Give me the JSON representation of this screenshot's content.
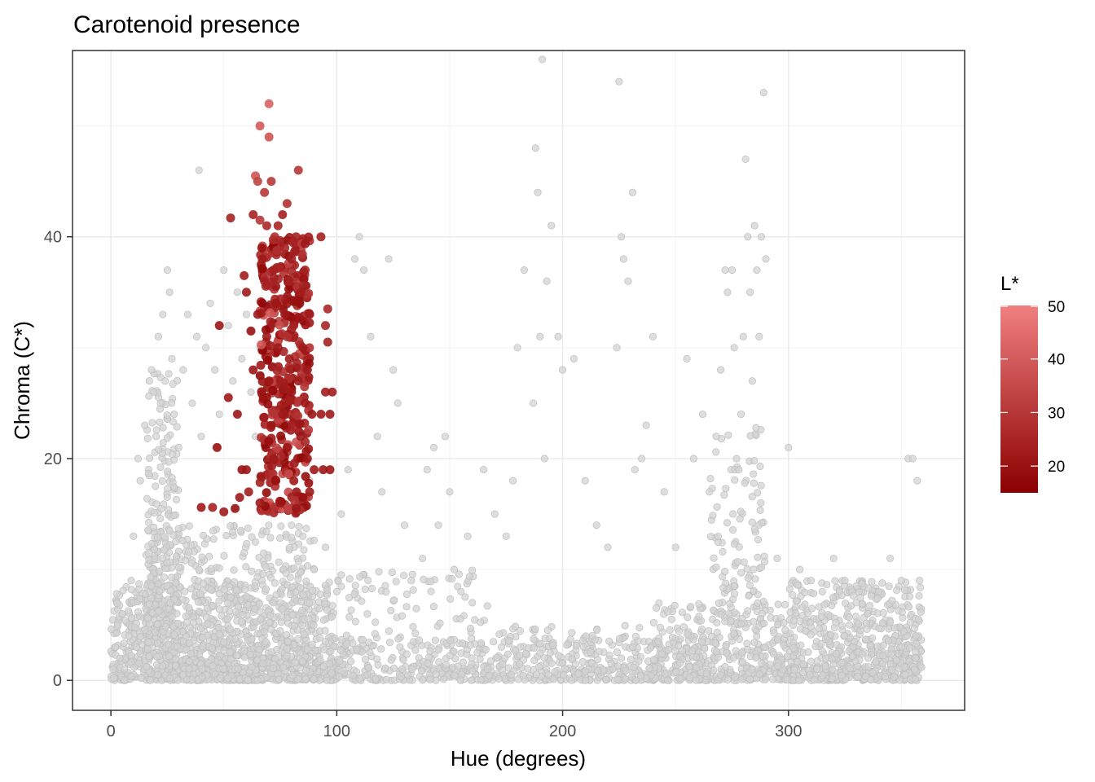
{
  "chart_data": {
    "type": "scatter",
    "title": "Carotenoid presence",
    "xlabel": "Hue (degrees)",
    "ylabel": "Chroma (C*)",
    "xlim": [
      -17,
      378
    ],
    "ylim": [
      -2.7,
      56.8
    ],
    "x_ticks": [
      0,
      100,
      200,
      300
    ],
    "y_ticks": [
      0,
      20,
      40
    ],
    "x_tick_labels": [
      "0",
      "100",
      "200",
      "300"
    ],
    "y_tick_labels": [
      "0",
      "20",
      "40"
    ],
    "grid": true,
    "legend": {
      "title": "L*",
      "placement": "right",
      "range": [
        15,
        50
      ],
      "ticks": [
        20,
        30,
        40,
        50
      ],
      "tick_labels": [
        "20",
        "30",
        "40",
        "50"
      ],
      "color_low": "#8b0000",
      "color_high": "#f08080"
    },
    "series": [
      {
        "role": "background",
        "color": "#d3d3d3",
        "description_points": "dense grey cloud of all samples",
        "points": [
          [
            1,
            1
          ],
          [
            2,
            3
          ],
          [
            3,
            5
          ],
          [
            4,
            2
          ],
          [
            5,
            6
          ],
          [
            6,
            1
          ],
          [
            8,
            4
          ],
          [
            9,
            9
          ],
          [
            10,
            13
          ],
          [
            12,
            20
          ],
          [
            13,
            18
          ],
          [
            15,
            23
          ],
          [
            18,
            28
          ],
          [
            19,
            26
          ],
          [
            20,
            22
          ],
          [
            21,
            31
          ],
          [
            22,
            25
          ],
          [
            23,
            33
          ],
          [
            24,
            27
          ],
          [
            25,
            37
          ],
          [
            26,
            35
          ],
          [
            27,
            29
          ],
          [
            28,
            24
          ],
          [
            30,
            21
          ],
          [
            32,
            28
          ],
          [
            34,
            33
          ],
          [
            36,
            25
          ],
          [
            38,
            31
          ],
          [
            39,
            46
          ],
          [
            40,
            22
          ],
          [
            42,
            30
          ],
          [
            44,
            34
          ],
          [
            46,
            28
          ],
          [
            48,
            24
          ],
          [
            50,
            37
          ],
          [
            52,
            32
          ],
          [
            54,
            27
          ],
          [
            56,
            35
          ],
          [
            58,
            29
          ],
          [
            60,
            33
          ],
          [
            62,
            26
          ],
          [
            64,
            22
          ],
          [
            66,
            30
          ],
          [
            68,
            25
          ],
          [
            70,
            19
          ],
          [
            75,
            16
          ],
          [
            80,
            14
          ],
          [
            85,
            13
          ],
          [
            88,
            18
          ],
          [
            90,
            10
          ],
          [
            95,
            12
          ],
          [
            100,
            8
          ],
          [
            102,
            15
          ],
          [
            105,
            19
          ],
          [
            108,
            38
          ],
          [
            110,
            40
          ],
          [
            112,
            37
          ],
          [
            115,
            31
          ],
          [
            118,
            22
          ],
          [
            120,
            17
          ],
          [
            123,
            38
          ],
          [
            125,
            28
          ],
          [
            127,
            25
          ],
          [
            130,
            14
          ],
          [
            133,
            9
          ],
          [
            138,
            11
          ],
          [
            140,
            19
          ],
          [
            143,
            21
          ],
          [
            145,
            14
          ],
          [
            148,
            22
          ],
          [
            150,
            17
          ],
          [
            152,
            10
          ],
          [
            155,
            8
          ],
          [
            158,
            13
          ],
          [
            160,
            7
          ],
          [
            165,
            19
          ],
          [
            170,
            15
          ],
          [
            175,
            13
          ],
          [
            178,
            18
          ],
          [
            180,
            30
          ],
          [
            183,
            37
          ],
          [
            187,
            25
          ],
          [
            188,
            48
          ],
          [
            189,
            44
          ],
          [
            190,
            31
          ],
          [
            191,
            56
          ],
          [
            192,
            20
          ],
          [
            193,
            36
          ],
          [
            195,
            41
          ],
          [
            198,
            31
          ],
          [
            200,
            28
          ],
          [
            205,
            29
          ],
          [
            210,
            18
          ],
          [
            215,
            14
          ],
          [
            220,
            12
          ],
          [
            224,
            30
          ],
          [
            225,
            54
          ],
          [
            226,
            40
          ],
          [
            227,
            38
          ],
          [
            229,
            36
          ],
          [
            231,
            44
          ],
          [
            232,
            19
          ],
          [
            235,
            20
          ],
          [
            237,
            23
          ],
          [
            240,
            31
          ],
          [
            245,
            17
          ],
          [
            250,
            12
          ],
          [
            255,
            29
          ],
          [
            258,
            20
          ],
          [
            262,
            24
          ],
          [
            265,
            17
          ],
          [
            268,
            22
          ],
          [
            270,
            28
          ],
          [
            272,
            37
          ],
          [
            273,
            35
          ],
          [
            275,
            37
          ],
          [
            276,
            30
          ],
          [
            277,
            20
          ],
          [
            278,
            19
          ],
          [
            279,
            24
          ],
          [
            280,
            31
          ],
          [
            281,
            47
          ],
          [
            282,
            40
          ],
          [
            283,
            35
          ],
          [
            284,
            27
          ],
          [
            285,
            41
          ],
          [
            286,
            37
          ],
          [
            287,
            31
          ],
          [
            288,
            40
          ],
          [
            289,
            53
          ],
          [
            290,
            38
          ],
          [
            295,
            11
          ],
          [
            300,
            21
          ],
          [
            305,
            10
          ],
          [
            310,
            9
          ],
          [
            315,
            8
          ],
          [
            320,
            11
          ],
          [
            325,
            9
          ],
          [
            330,
            7
          ],
          [
            335,
            6
          ],
          [
            340,
            8
          ],
          [
            345,
            11
          ],
          [
            350,
            9
          ],
          [
            353,
            20
          ],
          [
            355,
            20
          ],
          [
            357,
            18
          ],
          [
            358,
            9
          ]
        ]
      },
      {
        "role": "carotenoid",
        "color_by": "L*",
        "points": [
          [
            40,
            15.6,
            22
          ],
          [
            45,
            15.6,
            24
          ],
          [
            47,
            21,
            20
          ],
          [
            48,
            32,
            21
          ],
          [
            50,
            15.2,
            22
          ],
          [
            52,
            25.5,
            22
          ],
          [
            53,
            41.7,
            24
          ],
          [
            55,
            15.5,
            20
          ],
          [
            56,
            24,
            21
          ],
          [
            57,
            16.5,
            22
          ],
          [
            58,
            19,
            20
          ],
          [
            59,
            36.5,
            23
          ],
          [
            60,
            35,
            22
          ],
          [
            60,
            19,
            21
          ],
          [
            61,
            17,
            23
          ],
          [
            62,
            31.5,
            20
          ],
          [
            63,
            42,
            24
          ],
          [
            63,
            28,
            21
          ],
          [
            64,
            45.5,
            38
          ],
          [
            65,
            45,
            33
          ],
          [
            65,
            33,
            22
          ],
          [
            66,
            50,
            40
          ],
          [
            66,
            41.5,
            30
          ],
          [
            66,
            16,
            22
          ],
          [
            67,
            38,
            22
          ],
          [
            68,
            36,
            24
          ],
          [
            68,
            44,
            30
          ],
          [
            69,
            31,
            22
          ],
          [
            69,
            41,
            26
          ],
          [
            70,
            49,
            38
          ],
          [
            70,
            52,
            42
          ],
          [
            70,
            27,
            21
          ],
          [
            71,
            45,
            30
          ],
          [
            71,
            23,
            21
          ],
          [
            72,
            37,
            24
          ],
          [
            72,
            20,
            22
          ],
          [
            73,
            34,
            21
          ],
          [
            73,
            18,
            20
          ],
          [
            74,
            41,
            25
          ],
          [
            74,
            30,
            22
          ],
          [
            75,
            16,
            21
          ],
          [
            75,
            27,
            23
          ],
          [
            76,
            42,
            24
          ],
          [
            76,
            24,
            22
          ],
          [
            77,
            39,
            25
          ],
          [
            77,
            33,
            22
          ],
          [
            78,
            43,
            28
          ],
          [
            78,
            21,
            21
          ],
          [
            79,
            29,
            22
          ],
          [
            79,
            36,
            24
          ],
          [
            80,
            26,
            21
          ],
          [
            80,
            38,
            23
          ],
          [
            81,
            18,
            22
          ],
          [
            81,
            32,
            24
          ],
          [
            82,
            40,
            24
          ],
          [
            82,
            15.5,
            21
          ],
          [
            83,
            46,
            30
          ],
          [
            83,
            27,
            22
          ],
          [
            84,
            35,
            23
          ],
          [
            84,
            22,
            21
          ],
          [
            85,
            30,
            22
          ],
          [
            85,
            16.5,
            20
          ],
          [
            86,
            37,
            24
          ],
          [
            86,
            25,
            22
          ],
          [
            87,
            20,
            21
          ],
          [
            87,
            28,
            22
          ],
          [
            88,
            33,
            23
          ],
          [
            88,
            17,
            22
          ],
          [
            89,
            24,
            21
          ],
          [
            90,
            19,
            22
          ],
          [
            93,
            40,
            24
          ],
          [
            93,
            24,
            22
          ],
          [
            94,
            19,
            21
          ],
          [
            95,
            26,
            23
          ],
          [
            95,
            32,
            25
          ],
          [
            96,
            33.5,
            26
          ],
          [
            96,
            30.5,
            24
          ],
          [
            97,
            24,
            22
          ],
          [
            97,
            19,
            21
          ],
          [
            98,
            26,
            23
          ]
        ]
      }
    ]
  }
}
